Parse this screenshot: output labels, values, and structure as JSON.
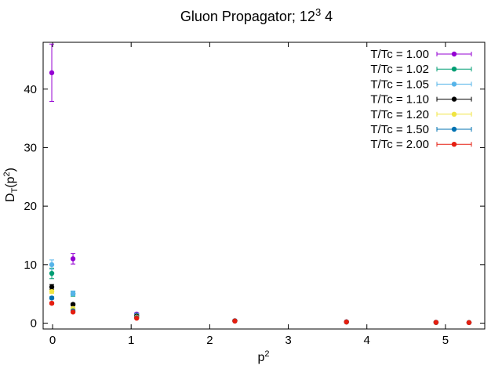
{
  "chart_data": {
    "type": "scatter",
    "title_main": "Gluon Propagator; 12",
    "title_sup": "3",
    "title_tail": " 4",
    "xlabel_base": "p",
    "xlabel_sup": "2",
    "ylabel_base": "D",
    "ylabel_sub": "T",
    "ylabel_open": "(p",
    "ylabel_sup": "2",
    "ylabel_close": ")",
    "xlim": [
      -0.12,
      5.5
    ],
    "ylim": [
      -1,
      48
    ],
    "xticks": [
      0,
      1,
      2,
      3,
      4,
      5
    ],
    "xtick_labels": [
      "0",
      "1",
      "2",
      "3",
      "4",
      "5"
    ],
    "yticks": [
      0,
      10,
      20,
      30,
      40
    ],
    "ytick_labels": [
      "0",
      "10",
      "20",
      "30",
      "40"
    ],
    "grid": false,
    "legend_position": "top-right",
    "series": [
      {
        "name": "T/Tc = 1.00",
        "color": "#9400d3",
        "x": [
          -0.01,
          0.26,
          1.07,
          2.32,
          3.74,
          4.88,
          5.3
        ],
        "y": [
          42.8,
          11.0,
          1.55,
          0.42,
          0.22,
          0.14,
          0.1
        ],
        "err": [
          4.9,
          0.9,
          0.2,
          0.05,
          0.03,
          0.02,
          0.02
        ]
      },
      {
        "name": "T/Tc = 1.02",
        "color": "#009e73",
        "x": [
          -0.01,
          0.26,
          1.07,
          2.32,
          3.74,
          4.88,
          5.3
        ],
        "y": [
          8.5,
          5.0,
          1.4,
          0.4,
          0.21,
          0.13,
          0.1
        ],
        "err": [
          0.9,
          0.4,
          0.15,
          0.05,
          0.03,
          0.02,
          0.02
        ]
      },
      {
        "name": "T/Tc = 1.05",
        "color": "#56b4e9",
        "x": [
          -0.01,
          0.26,
          1.07,
          2.32,
          3.74,
          4.88,
          5.3
        ],
        "y": [
          10.0,
          5.1,
          1.35,
          0.4,
          0.21,
          0.13,
          0.1
        ],
        "err": [
          0.8,
          0.4,
          0.15,
          0.05,
          0.03,
          0.02,
          0.02
        ]
      },
      {
        "name": "T/Tc = 1.10",
        "color": "#000000",
        "x": [
          -0.01,
          0.26,
          1.07,
          2.32,
          3.74,
          4.88,
          5.3
        ],
        "y": [
          6.2,
          3.2,
          1.2,
          0.39,
          0.21,
          0.13,
          0.1
        ],
        "err": [
          0.4,
          0.2,
          0.1,
          0.04,
          0.03,
          0.02,
          0.02
        ]
      },
      {
        "name": "T/Tc = 1.20",
        "color": "#f0e442",
        "x": [
          -0.01,
          0.26,
          1.07,
          2.32,
          3.74,
          4.88,
          5.3
        ],
        "y": [
          5.4,
          2.5,
          1.05,
          0.38,
          0.2,
          0.13,
          0.1
        ],
        "err": [
          0.3,
          0.2,
          0.1,
          0.04,
          0.03,
          0.02,
          0.02
        ]
      },
      {
        "name": "T/Tc = 1.50",
        "color": "#0072b2",
        "x": [
          -0.01,
          0.26,
          1.07,
          2.32,
          3.74,
          4.88,
          5.3
        ],
        "y": [
          4.3,
          2.1,
          0.95,
          0.37,
          0.2,
          0.13,
          0.1
        ],
        "err": [
          0.2,
          0.15,
          0.08,
          0.04,
          0.03,
          0.02,
          0.02
        ]
      },
      {
        "name": "T/Tc = 2.00",
        "color": "#e51e10",
        "x": [
          -0.01,
          0.26,
          1.07,
          2.32,
          3.74,
          4.88,
          5.3
        ],
        "y": [
          3.4,
          1.9,
          0.85,
          0.36,
          0.2,
          0.13,
          0.1
        ],
        "err": [
          0.2,
          0.12,
          0.07,
          0.04,
          0.03,
          0.02,
          0.02
        ]
      }
    ]
  }
}
